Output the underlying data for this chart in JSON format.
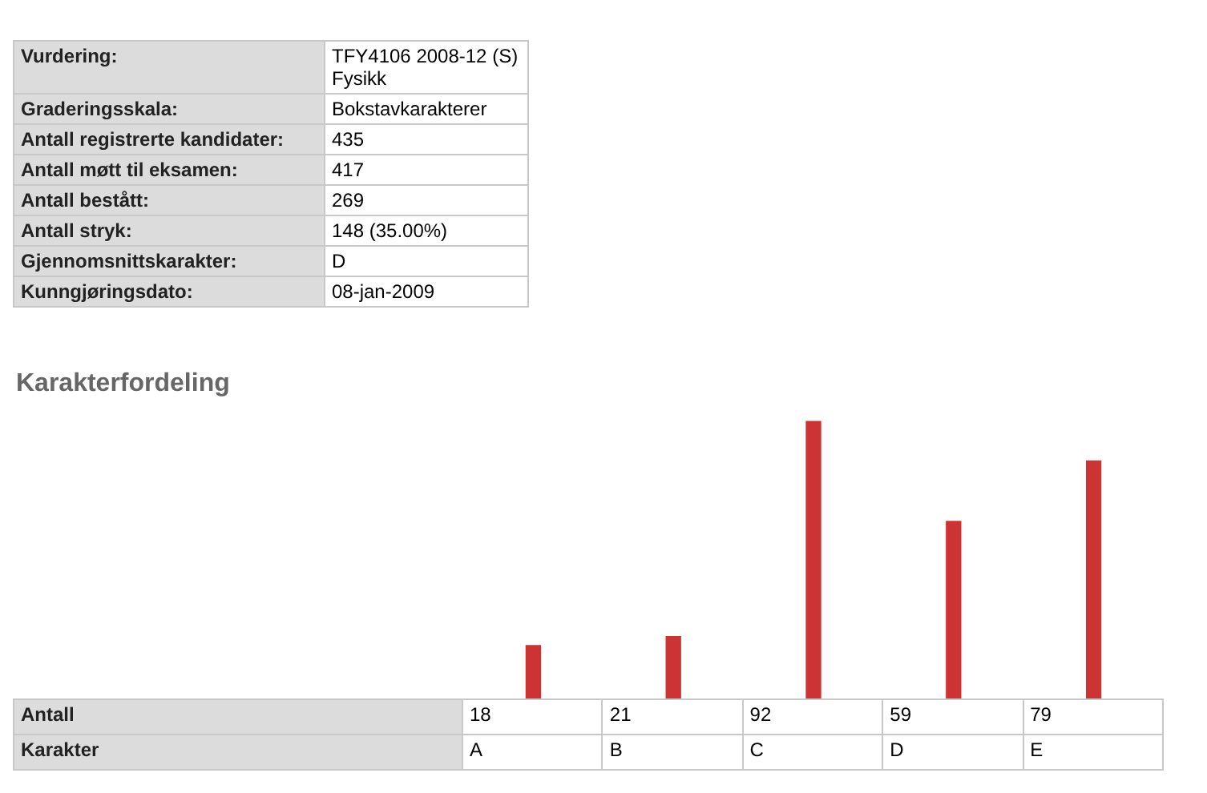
{
  "chart_data": {
    "type": "bar",
    "title": "Karakterfordeling",
    "categories": [
      "A",
      "B",
      "C",
      "D",
      "E"
    ],
    "values": [
      18,
      21,
      92,
      59,
      79
    ],
    "color": "#cc3333",
    "data_labels": true,
    "legend": false,
    "annotations": [
      "Vurdering:",
      "TFY4106 2008-12 (S) Fysikk",
      "Graderingsskala:",
      "Bokstavkarakterer",
      "Antall registrerte kandidater:",
      "435",
      "Antall møtt til eksamen:",
      "417",
      "Antall bestått:",
      "269",
      "Antall stryk:",
      "148 (35.00%)",
      "Gjennomsnittskarakter:",
      "D",
      "Kunngjøringsdato:",
      "08-jan-2009",
      "Antall",
      "Karakter"
    ]
  }
}
